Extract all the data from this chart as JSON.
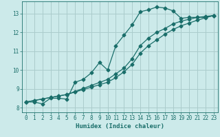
{
  "title": "",
  "xlabel": "Humidex (Indice chaleur)",
  "background_color": "#cceaea",
  "grid_color": "#aacccc",
  "line_color": "#1a6e6a",
  "xlim": [
    -0.5,
    23.5
  ],
  "ylim": [
    7.75,
    13.65
  ],
  "xticks": [
    0,
    1,
    2,
    3,
    4,
    5,
    6,
    7,
    8,
    9,
    10,
    11,
    12,
    13,
    14,
    15,
    16,
    17,
    18,
    19,
    20,
    21,
    22,
    23
  ],
  "yticks": [
    8,
    9,
    10,
    11,
    12,
    13
  ],
  "curve1_x": [
    0,
    1,
    2,
    3,
    4,
    5,
    6,
    7,
    8,
    9,
    10,
    11,
    12,
    13,
    14,
    15,
    16,
    17,
    18,
    19,
    20,
    21,
    22,
    23
  ],
  "curve1_y": [
    8.3,
    8.3,
    8.2,
    8.5,
    8.5,
    8.45,
    9.35,
    9.5,
    9.85,
    10.4,
    10.0,
    11.3,
    11.85,
    12.4,
    13.1,
    13.2,
    13.35,
    13.3,
    13.15,
    12.75,
    12.8,
    12.8,
    12.8,
    12.9
  ],
  "curve2_x": [
    0,
    1,
    2,
    3,
    4,
    5,
    6,
    7,
    8,
    9,
    10,
    11,
    12,
    13,
    14,
    15,
    16,
    17,
    18,
    19,
    20,
    21,
    22,
    23
  ],
  "curve2_y": [
    8.3,
    8.38,
    8.46,
    8.54,
    8.62,
    8.7,
    8.86,
    9.02,
    9.18,
    9.34,
    9.5,
    9.8,
    10.1,
    10.6,
    11.3,
    11.7,
    12.0,
    12.2,
    12.45,
    12.6,
    12.7,
    12.8,
    12.85,
    12.9
  ],
  "curve3_x": [
    0,
    1,
    2,
    3,
    4,
    5,
    6,
    7,
    8,
    9,
    10,
    11,
    12,
    13,
    14,
    15,
    16,
    17,
    18,
    19,
    20,
    21,
    22,
    23
  ],
  "curve3_y": [
    8.3,
    8.38,
    8.46,
    8.54,
    8.62,
    8.7,
    8.83,
    8.96,
    9.09,
    9.22,
    9.35,
    9.6,
    9.9,
    10.3,
    10.9,
    11.3,
    11.6,
    11.9,
    12.15,
    12.35,
    12.5,
    12.65,
    12.78,
    12.9
  ]
}
